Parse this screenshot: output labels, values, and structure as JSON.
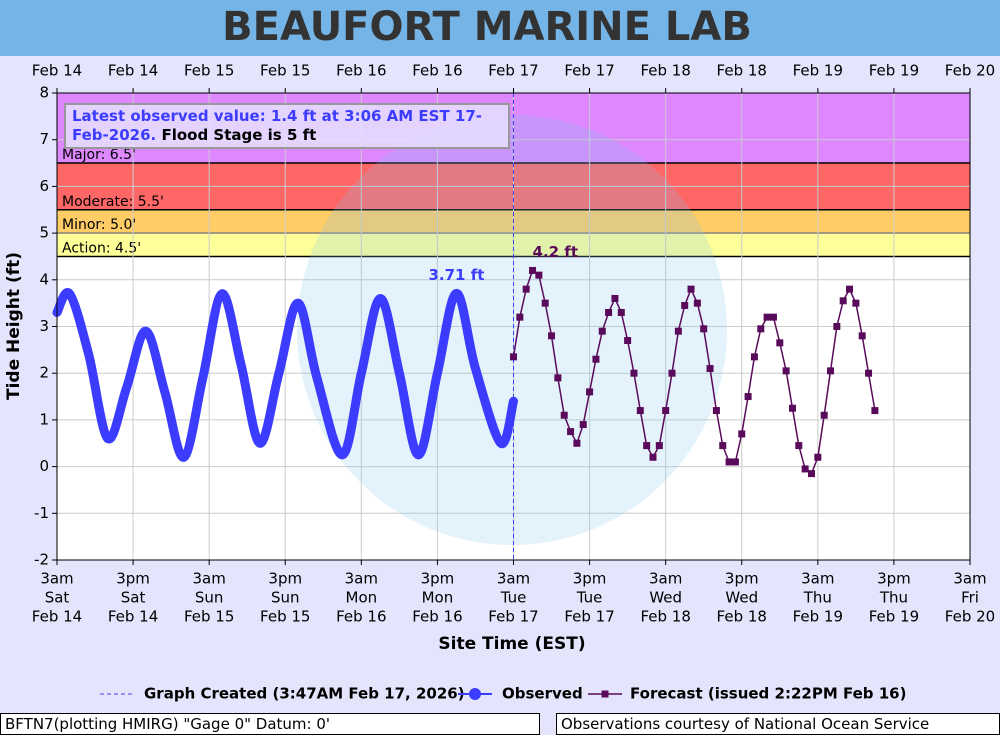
{
  "chart_data": {
    "type": "line",
    "title": "BEAUFORT MARINE LAB",
    "xlabel": "Site Time (EST)",
    "ylabel": "Tide Height (ft)",
    "xlim": [
      "2026-02-14T03:00",
      "2026-02-20T03:00"
    ],
    "ylim": [
      -2,
      8
    ],
    "yticks": [
      -2,
      -1,
      0,
      1,
      2,
      3,
      4,
      5,
      6,
      7,
      8
    ],
    "grid": true,
    "xticks": [
      {
        "value": "2026-02-14T03:00",
        "label": [
          "3am",
          "Sat",
          "Feb 14"
        ]
      },
      {
        "value": "2026-02-14T15:00",
        "label": [
          "3pm",
          "Sat",
          "Feb 14"
        ]
      },
      {
        "value": "2026-02-15T03:00",
        "label": [
          "3am",
          "Sun",
          "Feb 15"
        ]
      },
      {
        "value": "2026-02-15T15:00",
        "label": [
          "3pm",
          "Sun",
          "Feb 15"
        ]
      },
      {
        "value": "2026-02-16T03:00",
        "label": [
          "3am",
          "Mon",
          "Feb 16"
        ]
      },
      {
        "value": "2026-02-16T15:00",
        "label": [
          "3pm",
          "Mon",
          "Feb 16"
        ]
      },
      {
        "value": "2026-02-17T03:00",
        "label": [
          "3am",
          "Tue",
          "Feb 17"
        ]
      },
      {
        "value": "2026-02-17T15:00",
        "label": [
          "3pm",
          "Tue",
          "Feb 17"
        ]
      },
      {
        "value": "2026-02-18T03:00",
        "label": [
          "3am",
          "Wed",
          "Feb 18"
        ]
      },
      {
        "value": "2026-02-18T15:00",
        "label": [
          "3pm",
          "Wed",
          "Feb 18"
        ]
      },
      {
        "value": "2026-02-19T03:00",
        "label": [
          "3am",
          "Thu",
          "Feb 19"
        ]
      },
      {
        "value": "2026-02-19T15:00",
        "label": [
          "3pm",
          "Thu",
          "Feb 19"
        ]
      },
      {
        "value": "2026-02-20T03:00",
        "label": [
          "3am",
          "Fri",
          "Feb 20"
        ]
      }
    ],
    "x2ticks": [
      {
        "value": "2026-02-14T03:00",
        "label": "Feb 14"
      },
      {
        "value": "2026-02-14T15:00",
        "label": "Feb 14"
      },
      {
        "value": "2026-02-15T03:00",
        "label": "Feb 15"
      },
      {
        "value": "2026-02-15T15:00",
        "label": "Feb 15"
      },
      {
        "value": "2026-02-16T03:00",
        "label": "Feb 16"
      },
      {
        "value": "2026-02-16T15:00",
        "label": "Feb 16"
      },
      {
        "value": "2026-02-17T03:00",
        "label": "Feb 17"
      },
      {
        "value": "2026-02-17T15:00",
        "label": "Feb 17"
      },
      {
        "value": "2026-02-18T03:00",
        "label": "Feb 18"
      },
      {
        "value": "2026-02-18T15:00",
        "label": "Feb 18"
      },
      {
        "value": "2026-02-19T03:00",
        "label": "Feb 19"
      },
      {
        "value": "2026-02-19T15:00",
        "label": "Feb 19"
      },
      {
        "value": "2026-02-20T03:00",
        "label": "Feb 20"
      }
    ],
    "flood_categories": [
      {
        "label": "Action: 4.5'",
        "value": 4.5,
        "color": "#ffff99"
      },
      {
        "label": "Minor: 5.0'",
        "value": 5.0,
        "color": "#ffcc66"
      },
      {
        "label": "Moderate: 5.5'",
        "value": 5.5,
        "color": "#ff6666"
      },
      {
        "label": "Major: 6.5'",
        "value": 6.5,
        "color": "#dd88ff"
      }
    ],
    "series": [
      {
        "name": "Observed",
        "color": "#3c3cff",
        "x": [
          "2026-02-14T03:00",
          "2026-02-14T05:00",
          "2026-02-14T08:00",
          "2026-02-14T11:00",
          "2026-02-14T14:00",
          "2026-02-14T17:00",
          "2026-02-14T20:00",
          "2026-02-14T23:00",
          "2026-02-15T02:00",
          "2026-02-15T05:00",
          "2026-02-15T08:00",
          "2026-02-15T11:00",
          "2026-02-15T14:00",
          "2026-02-15T17:00",
          "2026-02-15T20:00",
          "2026-02-16T00:00",
          "2026-02-16T03:00",
          "2026-02-16T06:00",
          "2026-02-16T09:00",
          "2026-02-16T12:00",
          "2026-02-16T15:00",
          "2026-02-16T18:00",
          "2026-02-16T21:00",
          "2026-02-17T01:00",
          "2026-02-17T03:00"
        ],
        "values": [
          3.3,
          3.7,
          2.4,
          0.6,
          1.7,
          2.9,
          1.6,
          0.2,
          1.9,
          3.7,
          2.2,
          0.5,
          2.0,
          3.5,
          1.9,
          0.25,
          2.0,
          3.6,
          2.0,
          0.25,
          2.0,
          3.71,
          2.1,
          0.5,
          1.4
        ]
      },
      {
        "name": "Forecast (issued 2:22PM Feb 16)",
        "color": "#5a0a5a",
        "x": [
          "2026-02-17T03:00",
          "2026-02-17T04:00",
          "2026-02-17T05:00",
          "2026-02-17T06:00",
          "2026-02-17T07:00",
          "2026-02-17T08:00",
          "2026-02-17T09:00",
          "2026-02-17T10:00",
          "2026-02-17T11:00",
          "2026-02-17T12:00",
          "2026-02-17T13:00",
          "2026-02-17T14:00",
          "2026-02-17T15:00",
          "2026-02-17T16:00",
          "2026-02-17T17:00",
          "2026-02-17T18:00",
          "2026-02-17T19:00",
          "2026-02-17T20:00",
          "2026-02-17T21:00",
          "2026-02-17T22:00",
          "2026-02-17T23:00",
          "2026-02-18T00:00",
          "2026-02-18T01:00",
          "2026-02-18T02:00",
          "2026-02-18T03:00",
          "2026-02-18T04:00",
          "2026-02-18T05:00",
          "2026-02-18T06:00",
          "2026-02-18T07:00",
          "2026-02-18T08:00",
          "2026-02-18T09:00",
          "2026-02-18T10:00",
          "2026-02-18T11:00",
          "2026-02-18T12:00",
          "2026-02-18T13:00",
          "2026-02-18T14:00",
          "2026-02-18T15:00",
          "2026-02-18T16:00",
          "2026-02-18T17:00",
          "2026-02-18T18:00",
          "2026-02-18T19:00",
          "2026-02-18T20:00",
          "2026-02-18T21:00",
          "2026-02-18T22:00",
          "2026-02-18T23:00",
          "2026-02-19T00:00",
          "2026-02-19T01:00",
          "2026-02-19T02:00",
          "2026-02-19T03:00",
          "2026-02-19T04:00",
          "2026-02-19T05:00",
          "2026-02-19T06:00",
          "2026-02-19T07:00",
          "2026-02-19T08:00",
          "2026-02-19T09:00",
          "2026-02-19T10:00",
          "2026-02-19T11:00",
          "2026-02-19T12:00"
        ],
        "values": [
          2.35,
          3.2,
          3.8,
          4.2,
          4.1,
          3.5,
          2.8,
          1.9,
          1.1,
          0.75,
          0.5,
          0.9,
          1.6,
          2.3,
          2.9,
          3.3,
          3.6,
          3.3,
          2.7,
          2.0,
          1.2,
          0.45,
          0.2,
          0.45,
          1.2,
          2.0,
          2.9,
          3.45,
          3.8,
          3.5,
          2.95,
          2.1,
          1.2,
          0.45,
          0.1,
          0.1,
          0.7,
          1.5,
          2.35,
          2.95,
          3.2,
          3.2,
          2.65,
          2.05,
          1.25,
          0.45,
          -0.05,
          -0.15,
          0.2,
          1.1,
          2.05,
          3.0,
          3.55,
          3.8,
          3.5,
          2.8,
          2.0,
          1.2
        ]
      }
    ],
    "created": {
      "name": "Graph Created (3:47AM Feb 17, 2026)",
      "x": "2026-02-17T03:00",
      "color": "#3c3cff"
    },
    "annotations": [
      {
        "text": "3.71 ft",
        "x": "2026-02-16T18:00",
        "y": 3.71,
        "color": "#3c3cff"
      },
      {
        "text": "4.2 ft",
        "x": "2026-02-17T06:00",
        "y": 4.2,
        "color": "#5a0a5a"
      }
    ],
    "latest_observed": "Latest observed value: 1.4 ft at 3:06 AM EST 17-Feb-2026.",
    "flood_stage_note": "Flood Stage is 5 ft",
    "footer_left": "BFTN7(plotting HMIRG) \"Gage 0\" Datum: 0'",
    "footer_right": "Observations courtesy of National Ocean Service"
  }
}
